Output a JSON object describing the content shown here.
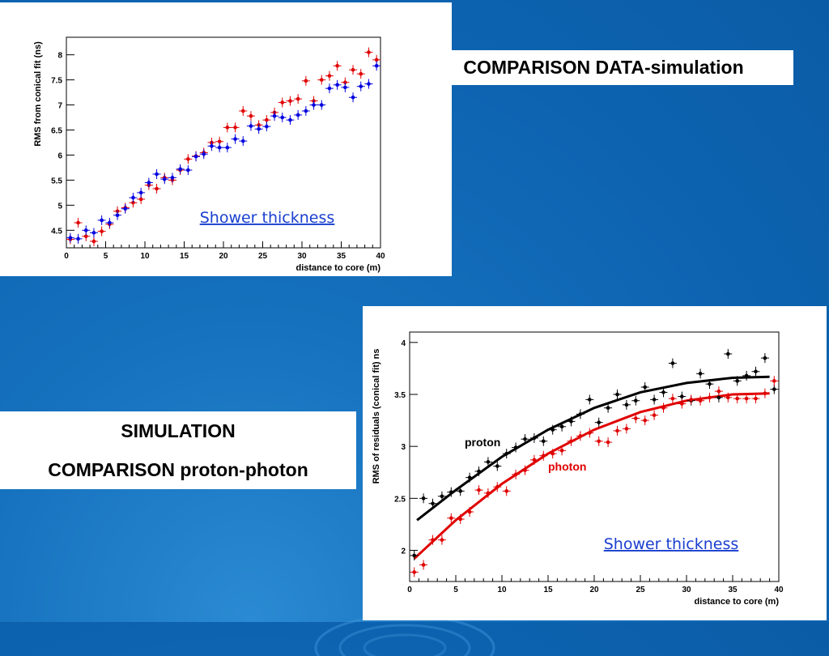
{
  "slide": {
    "title_box": "COMPARISON DATA-simulation",
    "sim_box": {
      "line1": "SIMULATION",
      "line2": "COMPARISON proton-photon"
    }
  },
  "colors": {
    "background": "#0d63b0",
    "red": "#e00000",
    "blue": "#0000e0",
    "black": "#000000"
  },
  "chart_data": [
    {
      "type": "scatter",
      "ylabel": "RMS from conical fit (ns)",
      "xlabel": "distance to core (m)",
      "annotation": "Shower thickness",
      "xlim": [
        0,
        40
      ],
      "ylim": [
        4.15,
        8.35
      ],
      "x_ticks": [
        0,
        5,
        10,
        15,
        20,
        25,
        30,
        35,
        40
      ],
      "y_ticks": [
        4.5,
        5,
        5.5,
        6,
        6.5,
        7,
        7.5,
        8
      ],
      "series": [
        {
          "color": "#e00000",
          "points": [
            [
              0.5,
              4.32
            ],
            [
              1.5,
              4.65
            ],
            [
              2.5,
              4.38
            ],
            [
              3.5,
              4.28
            ],
            [
              4.5,
              4.48
            ],
            [
              5.5,
              4.62
            ],
            [
              6.5,
              4.88
            ],
            [
              7.5,
              4.95
            ],
            [
              8.5,
              5.05
            ],
            [
              9.5,
              5.12
            ],
            [
              10.5,
              5.4
            ],
            [
              11.5,
              5.33
            ],
            [
              12.5,
              5.55
            ],
            [
              13.5,
              5.5
            ],
            [
              14.5,
              5.7
            ],
            [
              15.5,
              5.92
            ],
            [
              16.5,
              5.98
            ],
            [
              17.5,
              6.05
            ],
            [
              18.5,
              6.25
            ],
            [
              19.5,
              6.27
            ],
            [
              20.5,
              6.55
            ],
            [
              21.5,
              6.55
            ],
            [
              22.5,
              6.88
            ],
            [
              23.5,
              6.78
            ],
            [
              24.5,
              6.6
            ],
            [
              25.5,
              6.7
            ],
            [
              26.5,
              6.85
            ],
            [
              27.5,
              7.05
            ],
            [
              28.5,
              7.08
            ],
            [
              29.5,
              7.12
            ],
            [
              30.5,
              7.48
            ],
            [
              31.5,
              7.08
            ],
            [
              32.5,
              7.5
            ],
            [
              33.5,
              7.58
            ],
            [
              34.5,
              7.78
            ],
            [
              35.5,
              7.45
            ],
            [
              36.5,
              7.7
            ],
            [
              37.5,
              7.62
            ],
            [
              38.5,
              8.05
            ],
            [
              39.5,
              7.9
            ]
          ]
        },
        {
          "color": "#0000e0",
          "points": [
            [
              0.5,
              4.35
            ],
            [
              1.5,
              4.33
            ],
            [
              2.5,
              4.5
            ],
            [
              3.5,
              4.45
            ],
            [
              4.5,
              4.7
            ],
            [
              5.5,
              4.65
            ],
            [
              6.5,
              4.8
            ],
            [
              7.5,
              4.93
            ],
            [
              8.5,
              5.15
            ],
            [
              9.5,
              5.25
            ],
            [
              10.5,
              5.45
            ],
            [
              11.5,
              5.62
            ],
            [
              12.5,
              5.52
            ],
            [
              13.5,
              5.55
            ],
            [
              14.5,
              5.72
            ],
            [
              15.5,
              5.7
            ],
            [
              16.5,
              5.97
            ],
            [
              17.5,
              6.02
            ],
            [
              18.5,
              6.18
            ],
            [
              19.5,
              6.15
            ],
            [
              20.5,
              6.15
            ],
            [
              21.5,
              6.32
            ],
            [
              22.5,
              6.28
            ],
            [
              23.5,
              6.58
            ],
            [
              24.5,
              6.52
            ],
            [
              25.5,
              6.57
            ],
            [
              26.5,
              6.78
            ],
            [
              27.5,
              6.75
            ],
            [
              28.5,
              6.7
            ],
            [
              29.5,
              6.8
            ],
            [
              30.5,
              6.88
            ],
            [
              31.5,
              7.0
            ],
            [
              32.5,
              7.0
            ],
            [
              33.5,
              7.33
            ],
            [
              34.5,
              7.4
            ],
            [
              35.5,
              7.35
            ],
            [
              36.5,
              7.15
            ],
            [
              37.5,
              7.37
            ],
            [
              38.5,
              7.42
            ],
            [
              39.5,
              7.78
            ]
          ]
        }
      ]
    },
    {
      "type": "scatter",
      "ylabel": "RMS of residuals (conical fit) ns",
      "xlabel": "distance to core (m)",
      "annotation": "Shower thickness",
      "xlim": [
        0,
        40
      ],
      "ylim": [
        1.7,
        4.1
      ],
      "x_ticks": [
        0,
        5,
        10,
        15,
        20,
        25,
        30,
        35,
        40
      ],
      "y_ticks": [
        2,
        2.5,
        3,
        3.5,
        4
      ],
      "series": [
        {
          "name": "proton",
          "color": "#000000",
          "points": [
            [
              0.5,
              1.95
            ],
            [
              1.5,
              2.5
            ],
            [
              2.5,
              2.45
            ],
            [
              3.5,
              2.52
            ],
            [
              4.5,
              2.56
            ],
            [
              5.5,
              2.57
            ],
            [
              6.5,
              2.7
            ],
            [
              7.5,
              2.76
            ],
            [
              8.5,
              2.85
            ],
            [
              9.5,
              2.81
            ],
            [
              10.5,
              2.93
            ],
            [
              11.5,
              2.99
            ],
            [
              12.5,
              3.07
            ],
            [
              13.5,
              3.08
            ],
            [
              14.5,
              3.05
            ],
            [
              15.5,
              3.16
            ],
            [
              16.5,
              3.19
            ],
            [
              17.5,
              3.24
            ],
            [
              18.5,
              3.31
            ],
            [
              19.5,
              3.45
            ],
            [
              20.5,
              3.23
            ],
            [
              21.5,
              3.37
            ],
            [
              22.5,
              3.5
            ],
            [
              23.5,
              3.4
            ],
            [
              24.5,
              3.44
            ],
            [
              25.5,
              3.57
            ],
            [
              26.5,
              3.45
            ],
            [
              27.5,
              3.52
            ],
            [
              28.5,
              3.8
            ],
            [
              29.5,
              3.48
            ],
            [
              30.5,
              3.44
            ],
            [
              31.5,
              3.7
            ],
            [
              32.5,
              3.6
            ],
            [
              33.5,
              3.47
            ],
            [
              34.5,
              3.89
            ],
            [
              35.5,
              3.63
            ],
            [
              36.5,
              3.68
            ],
            [
              37.5,
              3.72
            ],
            [
              38.5,
              3.85
            ],
            [
              39.5,
              3.55
            ]
          ],
          "fit": [
            [
              0.8,
              2.29
            ],
            [
              5,
              2.58
            ],
            [
              10,
              2.9
            ],
            [
              15,
              3.16
            ],
            [
              20,
              3.37
            ],
            [
              25,
              3.52
            ],
            [
              30,
              3.61
            ],
            [
              35,
              3.66
            ],
            [
              39,
              3.67
            ]
          ]
        },
        {
          "name": "photon",
          "color": "#e00000",
          "points": [
            [
              0.5,
              1.79
            ],
            [
              1.5,
              1.86
            ],
            [
              2.5,
              2.1
            ],
            [
              3.5,
              2.1
            ],
            [
              4.5,
              2.31
            ],
            [
              5.5,
              2.3
            ],
            [
              6.5,
              2.37
            ],
            [
              7.5,
              2.58
            ],
            [
              8.5,
              2.55
            ],
            [
              9.5,
              2.61
            ],
            [
              10.5,
              2.57
            ],
            [
              11.5,
              2.73
            ],
            [
              12.5,
              2.77
            ],
            [
              13.5,
              2.87
            ],
            [
              14.5,
              2.91
            ],
            [
              15.5,
              2.93
            ],
            [
              16.5,
              2.96
            ],
            [
              17.5,
              3.05
            ],
            [
              18.5,
              3.1
            ],
            [
              19.5,
              3.13
            ],
            [
              20.5,
              3.05
            ],
            [
              21.5,
              3.04
            ],
            [
              22.5,
              3.15
            ],
            [
              23.5,
              3.17
            ],
            [
              24.5,
              3.27
            ],
            [
              25.5,
              3.25
            ],
            [
              26.5,
              3.3
            ],
            [
              27.5,
              3.37
            ],
            [
              28.5,
              3.46
            ],
            [
              29.5,
              3.41
            ],
            [
              30.5,
              3.45
            ],
            [
              31.5,
              3.44
            ],
            [
              32.5,
              3.47
            ],
            [
              33.5,
              3.53
            ],
            [
              34.5,
              3.47
            ],
            [
              35.5,
              3.46
            ],
            [
              36.5,
              3.46
            ],
            [
              37.5,
              3.46
            ],
            [
              38.5,
              3.51
            ],
            [
              39.5,
              3.63
            ]
          ],
          "fit": [
            [
              0.5,
              1.92
            ],
            [
              5,
              2.29
            ],
            [
              10,
              2.64
            ],
            [
              15,
              2.93
            ],
            [
              20,
              3.16
            ],
            [
              25,
              3.33
            ],
            [
              30,
              3.44
            ],
            [
              35,
              3.5
            ],
            [
              39,
              3.51
            ]
          ]
        }
      ]
    }
  ]
}
